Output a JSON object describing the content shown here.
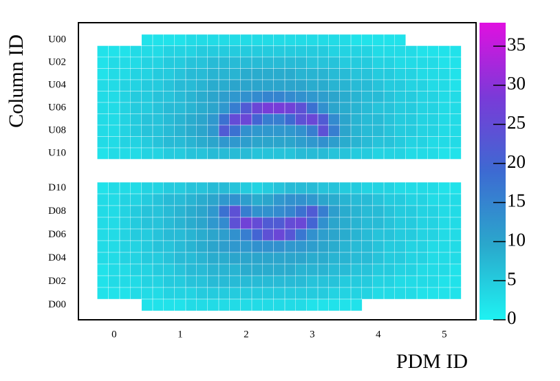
{
  "chart_data": {
    "type": "heatmap",
    "xlabel": "PDM ID",
    "ylabel": "Column ID",
    "x": [
      -0.17,
      0,
      0.17,
      0.33,
      0.5,
      0.67,
      0.83,
      1,
      1.17,
      1.33,
      1.5,
      1.67,
      1.83,
      2,
      2.17,
      2.33,
      2.5,
      2.67,
      2.83,
      3,
      3.17,
      3.33,
      3.5,
      3.67,
      3.83,
      4,
      4.17,
      4.33,
      4.5,
      4.67,
      4.83,
      5,
      5.17
    ],
    "xlim": [
      -0.54,
      5.48
    ],
    "xticks": [
      0,
      1,
      2,
      3,
      4,
      5
    ],
    "rows": [
      "U00",
      null,
      "U02",
      null,
      "U04",
      null,
      "U06",
      null,
      "U08",
      null,
      "U10",
      "D10",
      null,
      "D08",
      null,
      "D06",
      null,
      "D04",
      null,
      "D02",
      null,
      "D00"
    ],
    "values": [
      [
        null,
        null,
        null,
        null,
        2,
        2,
        2,
        2,
        3,
        3,
        3,
        3,
        3,
        3,
        3,
        3,
        3,
        3,
        3,
        3,
        3,
        3,
        3,
        2,
        2,
        2,
        2,
        2,
        null,
        null,
        null,
        null,
        null
      ],
      [
        2,
        2,
        2,
        3,
        3,
        3,
        4,
        4,
        4,
        5,
        5,
        5,
        5,
        5,
        5,
        5,
        5,
        5,
        5,
        5,
        5,
        4,
        4,
        4,
        4,
        3,
        3,
        3,
        3,
        2,
        2,
        2,
        2
      ],
      [
        2,
        3,
        3,
        3,
        4,
        4,
        5,
        5,
        6,
        6,
        7,
        7,
        7,
        7,
        7,
        7,
        7,
        7,
        7,
        6,
        6,
        6,
        5,
        5,
        5,
        4,
        4,
        3,
        3,
        3,
        3,
        2,
        2
      ],
      [
        2,
        3,
        3,
        4,
        4,
        5,
        5,
        6,
        7,
        7,
        8,
        8,
        8,
        9,
        9,
        9,
        9,
        9,
        8,
        8,
        8,
        7,
        7,
        6,
        6,
        5,
        5,
        4,
        4,
        3,
        3,
        3,
        2
      ],
      [
        3,
        3,
        4,
        4,
        5,
        5,
        6,
        7,
        7,
        8,
        9,
        9,
        10,
        10,
        10,
        10,
        10,
        10,
        10,
        9,
        9,
        8,
        8,
        7,
        7,
        6,
        5,
        5,
        4,
        4,
        3,
        3,
        2
      ],
      [
        3,
        3,
        4,
        5,
        5,
        6,
        6,
        7,
        8,
        9,
        10,
        11,
        12,
        13,
        14,
        15,
        15,
        14,
        13,
        12,
        11,
        10,
        9,
        8,
        7,
        7,
        6,
        5,
        5,
        4,
        4,
        3,
        3
      ],
      [
        3,
        3,
        4,
        5,
        5,
        6,
        7,
        7,
        8,
        9,
        10,
        12,
        16,
        22,
        26,
        28,
        28,
        27,
        24,
        18,
        13,
        10,
        9,
        8,
        7,
        6,
        6,
        5,
        5,
        4,
        4,
        3,
        3
      ],
      [
        3,
        3,
        4,
        5,
        6,
        6,
        7,
        8,
        9,
        10,
        12,
        18,
        25,
        26,
        20,
        16,
        16,
        19,
        24,
        26,
        22,
        14,
        10,
        8,
        7,
        7,
        6,
        5,
        5,
        4,
        4,
        3,
        3
      ],
      [
        3,
        3,
        4,
        5,
        6,
        6,
        7,
        8,
        9,
        10,
        12,
        22,
        18,
        13,
        12,
        12,
        12,
        12,
        13,
        16,
        24,
        16,
        10,
        8,
        7,
        7,
        6,
        5,
        5,
        4,
        4,
        3,
        3
      ],
      [
        3,
        3,
        4,
        4,
        5,
        6,
        7,
        7,
        8,
        9,
        10,
        12,
        12,
        11,
        10,
        10,
        10,
        10,
        11,
        12,
        13,
        11,
        9,
        8,
        7,
        6,
        6,
        5,
        4,
        4,
        3,
        3,
        3
      ],
      [
        2,
        3,
        3,
        3,
        4,
        4,
        5,
        5,
        6,
        6,
        7,
        7,
        7,
        7,
        6,
        6,
        6,
        6,
        7,
        7,
        7,
        6,
        6,
        5,
        5,
        4,
        4,
        4,
        3,
        3,
        3,
        2,
        2
      ],
      [
        2,
        3,
        3,
        3,
        4,
        4,
        5,
        5,
        6,
        6,
        7,
        7,
        6,
        5,
        4,
        5,
        6,
        7,
        7,
        7,
        6,
        6,
        5,
        5,
        4,
        4,
        4,
        3,
        3,
        3,
        3,
        2,
        2
      ],
      [
        3,
        3,
        4,
        4,
        5,
        6,
        7,
        7,
        8,
        9,
        10,
        12,
        13,
        11,
        9,
        10,
        12,
        13,
        13,
        12,
        10,
        9,
        8,
        7,
        7,
        6,
        5,
        5,
        4,
        4,
        3,
        3,
        3
      ],
      [
        3,
        3,
        4,
        5,
        6,
        6,
        7,
        8,
        9,
        10,
        12,
        18,
        24,
        16,
        13,
        13,
        14,
        15,
        18,
        22,
        16,
        11,
        9,
        8,
        7,
        7,
        6,
        5,
        5,
        4,
        4,
        3,
        3
      ],
      [
        3,
        3,
        4,
        5,
        6,
        6,
        7,
        8,
        9,
        10,
        12,
        14,
        24,
        27,
        25,
        22,
        22,
        25,
        26,
        20,
        13,
        10,
        9,
        8,
        7,
        7,
        6,
        5,
        5,
        4,
        4,
        3,
        3
      ],
      [
        3,
        3,
        4,
        5,
        5,
        6,
        7,
        7,
        8,
        9,
        10,
        11,
        13,
        16,
        20,
        24,
        26,
        23,
        17,
        13,
        11,
        10,
        9,
        8,
        7,
        6,
        6,
        5,
        5,
        4,
        4,
        3,
        3
      ],
      [
        3,
        3,
        4,
        4,
        5,
        6,
        6,
        7,
        8,
        9,
        10,
        11,
        12,
        12,
        13,
        13,
        13,
        12,
        12,
        11,
        10,
        9,
        8,
        7,
        7,
        6,
        5,
        5,
        4,
        4,
        3,
        3,
        3
      ],
      [
        3,
        3,
        4,
        4,
        5,
        5,
        6,
        7,
        7,
        8,
        9,
        9,
        10,
        10,
        10,
        10,
        10,
        10,
        10,
        9,
        9,
        8,
        8,
        7,
        7,
        6,
        5,
        5,
        4,
        4,
        3,
        3,
        3
      ],
      [
        2,
        3,
        3,
        4,
        4,
        5,
        5,
        6,
        7,
        7,
        8,
        8,
        8,
        9,
        9,
        9,
        9,
        9,
        8,
        8,
        8,
        7,
        7,
        6,
        6,
        5,
        5,
        4,
        4,
        3,
        3,
        3,
        2
      ],
      [
        2,
        3,
        3,
        3,
        4,
        4,
        5,
        5,
        6,
        6,
        7,
        7,
        7,
        7,
        7,
        7,
        7,
        7,
        7,
        6,
        6,
        6,
        5,
        5,
        5,
        4,
        4,
        3,
        3,
        3,
        3,
        2,
        2
      ],
      [
        2,
        2,
        2,
        3,
        3,
        3,
        4,
        4,
        4,
        5,
        5,
        5,
        5,
        5,
        5,
        5,
        5,
        5,
        5,
        5,
        5,
        4,
        4,
        4,
        4,
        3,
        3,
        3,
        3,
        2,
        2,
        2,
        2
      ],
      [
        null,
        null,
        null,
        null,
        2,
        2,
        2,
        2,
        3,
        3,
        3,
        3,
        3,
        3,
        3,
        3,
        3,
        3,
        3,
        2,
        2,
        2,
        2,
        2,
        null,
        null,
        null,
        null,
        null,
        null,
        null,
        null,
        null
      ]
    ],
    "zlim": [
      0,
      38
    ],
    "zticks": [
      0,
      5,
      10,
      15,
      20,
      25,
      30,
      35
    ],
    "colormap": [
      "#1ef2f2",
      "#2aa8cc",
      "#3d6ad2",
      "#7a3ad8",
      "#e010e0"
    ]
  }
}
